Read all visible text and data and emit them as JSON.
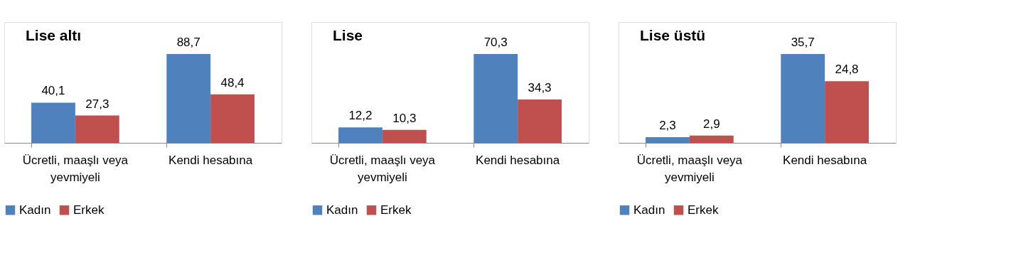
{
  "chart_data": [
    {
      "type": "bar",
      "title": "Lise altı",
      "categories": [
        "Ücretli, maaşlı veya yevmiyeli",
        "Kendi hesabına"
      ],
      "legend": "bottom",
      "series": [
        {
          "name": "Kadın",
          "color": "#4f81bd",
          "values": [
            40.1,
            88.7
          ],
          "value_labels": [
            "40,1",
            "88,7"
          ]
        },
        {
          "name": "Erkek",
          "color": "#c0504d",
          "values": [
            27.3,
            48.4
          ],
          "value_labels": [
            "27,3",
            "48,4"
          ]
        }
      ]
    },
    {
      "type": "bar",
      "title": "Lise",
      "categories": [
        "Ücretli, maaşlı veya yevmiyeli",
        "Kendi hesabına"
      ],
      "legend": "bottom",
      "series": [
        {
          "name": "Kadın",
          "color": "#4f81bd",
          "values": [
            12.2,
            70.3
          ],
          "value_labels": [
            "12,2",
            "70,3"
          ]
        },
        {
          "name": "Erkek",
          "color": "#c0504d",
          "values": [
            10.3,
            34.3
          ],
          "value_labels": [
            "10,3",
            "34,3"
          ]
        }
      ]
    },
    {
      "type": "bar",
      "title": "Lise üstü",
      "categories": [
        "Ücretli, maaşlı veya yevmiyeli",
        "Kendi hesabına"
      ],
      "legend": "bottom",
      "series": [
        {
          "name": "Kadın",
          "color": "#4f81bd",
          "values": [
            2.3,
            35.7
          ],
          "value_labels": [
            "2,3",
            "35,7"
          ]
        },
        {
          "name": "Erkek",
          "color": "#c0504d",
          "values": [
            2.9,
            24.8
          ],
          "value_labels": [
            "2,9",
            "24,8"
          ]
        }
      ]
    }
  ]
}
